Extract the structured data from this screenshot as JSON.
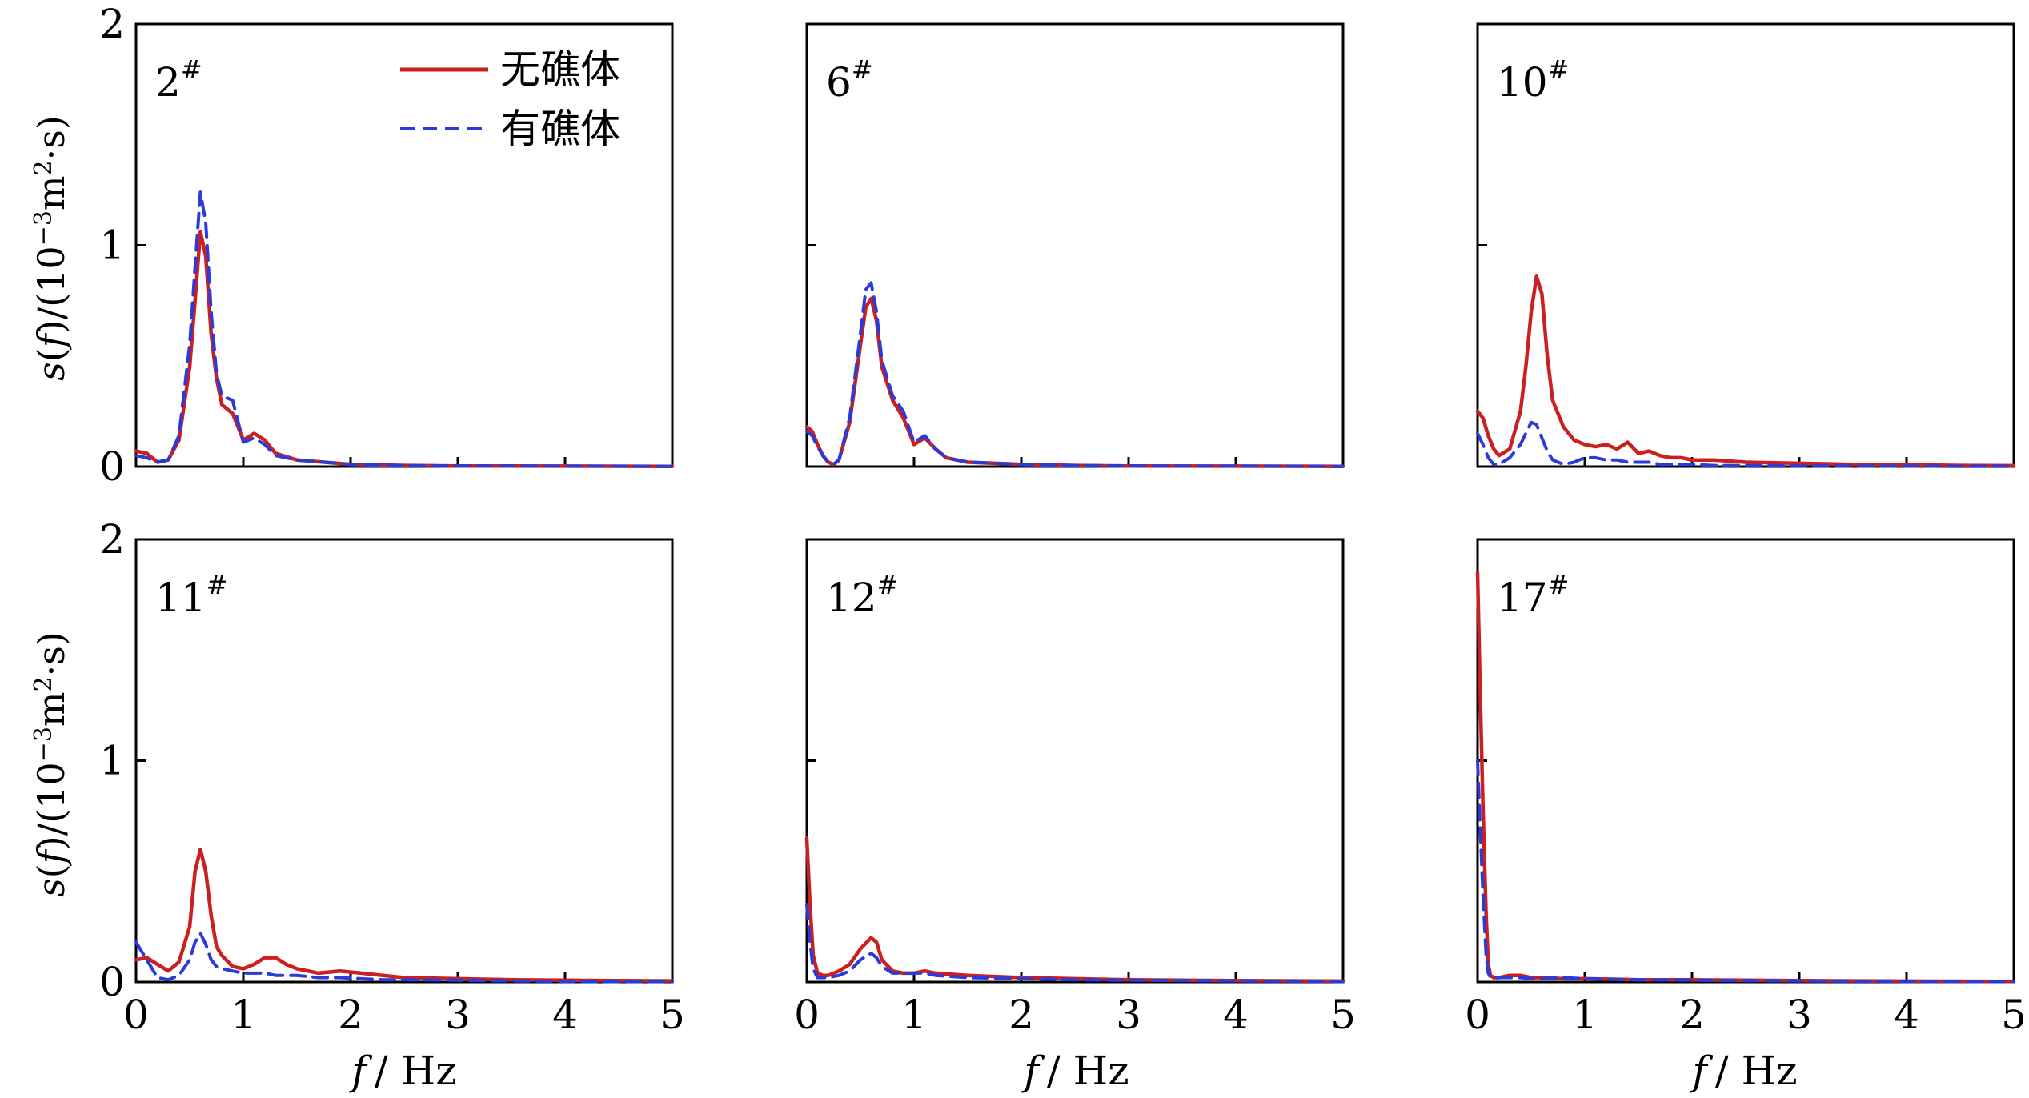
{
  "figure": {
    "y_label": "s(f)/(10⁻³m²·s)",
    "y_label_parts": {
      "italic_s": "s",
      "open": "(",
      "italic_f": "f",
      "close": ")/(10",
      "exp1": "−3",
      "unit": "m",
      "exp2": "2",
      "tail": "·s)"
    },
    "x_label": "f / Hz",
    "x_label_parts": {
      "italic_f": "f",
      "unit": "/ Hz"
    },
    "legend": [
      {
        "label": "无礁体",
        "color": "#cc1f1f",
        "dash": "solid"
      },
      {
        "label": "有礁体",
        "color": "#2a3bdc",
        "dash": "dashed"
      }
    ],
    "colors": {
      "no_reef": "#cc1f1f",
      "with_reef": "#2a3bdc"
    }
  },
  "chart_data": [
    {
      "type": "line",
      "title": "",
      "xlabel": "",
      "ylabel": "s(f)/(10⁻³m²·s)",
      "panel_label": "2",
      "panel_sup": "#",
      "xlim": [
        0,
        5
      ],
      "ylim": [
        0,
        2
      ],
      "x_ticks": [],
      "y_ticks": [
        0,
        1,
        2
      ],
      "show_legend": true,
      "x": [
        0,
        0.1,
        0.2,
        0.3,
        0.4,
        0.5,
        0.55,
        0.6,
        0.65,
        0.7,
        0.75,
        0.8,
        0.9,
        1.0,
        1.1,
        1.2,
        1.3,
        1.5,
        2.0,
        2.5,
        3.0,
        4.0,
        5.0
      ],
      "series": [
        {
          "name": "无礁体",
          "values": [
            0.07,
            0.06,
            0.02,
            0.03,
            0.12,
            0.45,
            0.75,
            1.06,
            0.95,
            0.6,
            0.4,
            0.28,
            0.24,
            0.12,
            0.15,
            0.12,
            0.06,
            0.03,
            0.01,
            0.005,
            0.003,
            0.002,
            0.001
          ]
        },
        {
          "name": "有礁体",
          "values": [
            0.05,
            0.04,
            0.02,
            0.03,
            0.14,
            0.55,
            0.9,
            1.24,
            1.1,
            0.7,
            0.42,
            0.32,
            0.3,
            0.11,
            0.13,
            0.1,
            0.05,
            0.03,
            0.01,
            0.005,
            0.003,
            0.002,
            0.001
          ]
        }
      ]
    },
    {
      "type": "line",
      "title": "",
      "xlabel": "",
      "ylabel": "",
      "panel_label": "6",
      "panel_sup": "#",
      "xlim": [
        0,
        5
      ],
      "ylim": [
        0,
        2
      ],
      "x_ticks": [],
      "y_ticks": [],
      "show_legend": false,
      "x": [
        0,
        0.05,
        0.1,
        0.15,
        0.2,
        0.25,
        0.3,
        0.4,
        0.5,
        0.55,
        0.6,
        0.65,
        0.7,
        0.8,
        0.9,
        1.0,
        1.1,
        1.2,
        1.3,
        1.5,
        2.0,
        2.5,
        3.0,
        4.0,
        5.0
      ],
      "series": [
        {
          "name": "无礁体",
          "values": [
            0.18,
            0.16,
            0.1,
            0.05,
            0.02,
            0.01,
            0.03,
            0.2,
            0.55,
            0.72,
            0.76,
            0.66,
            0.45,
            0.3,
            0.22,
            0.1,
            0.13,
            0.08,
            0.04,
            0.02,
            0.01,
            0.005,
            0.003,
            0.002,
            0.001
          ]
        },
        {
          "name": "有礁体",
          "values": [
            0.16,
            0.14,
            0.09,
            0.05,
            0.02,
            0.01,
            0.03,
            0.22,
            0.6,
            0.8,
            0.83,
            0.7,
            0.48,
            0.32,
            0.25,
            0.11,
            0.14,
            0.08,
            0.04,
            0.02,
            0.01,
            0.005,
            0.003,
            0.002,
            0.001
          ]
        }
      ]
    },
    {
      "type": "line",
      "title": "",
      "xlabel": "",
      "ylabel": "",
      "panel_label": "10",
      "panel_sup": "#",
      "xlim": [
        0,
        5
      ],
      "ylim": [
        0,
        2
      ],
      "x_ticks": [],
      "y_ticks": [],
      "show_legend": false,
      "x": [
        0,
        0.05,
        0.1,
        0.15,
        0.2,
        0.3,
        0.4,
        0.45,
        0.5,
        0.55,
        0.6,
        0.65,
        0.7,
        0.8,
        0.9,
        1.0,
        1.1,
        1.2,
        1.3,
        1.4,
        1.5,
        1.6,
        1.7,
        1.8,
        1.9,
        2.0,
        2.2,
        2.5,
        3.0,
        3.5,
        4.0,
        4.5,
        5.0
      ],
      "series": [
        {
          "name": "无礁体",
          "values": [
            0.25,
            0.22,
            0.14,
            0.08,
            0.05,
            0.08,
            0.25,
            0.45,
            0.7,
            0.86,
            0.78,
            0.5,
            0.3,
            0.18,
            0.12,
            0.1,
            0.09,
            0.1,
            0.08,
            0.11,
            0.06,
            0.07,
            0.05,
            0.04,
            0.04,
            0.03,
            0.03,
            0.02,
            0.015,
            0.01,
            0.008,
            0.005,
            0.004
          ]
        },
        {
          "name": "有礁体",
          "values": [
            0.15,
            0.1,
            0.04,
            0.01,
            0.01,
            0.04,
            0.1,
            0.15,
            0.2,
            0.19,
            0.13,
            0.07,
            0.03,
            0.01,
            0.02,
            0.04,
            0.04,
            0.03,
            0.03,
            0.02,
            0.02,
            0.02,
            0.01,
            0.01,
            0.01,
            0.01,
            0.005,
            0.005,
            0.003,
            0.002,
            0.002,
            0.001,
            0.001
          ]
        }
      ]
    },
    {
      "type": "line",
      "title": "",
      "xlabel": "f / Hz",
      "ylabel": "s(f)/(10⁻³m²·s)",
      "panel_label": "11",
      "panel_sup": "#",
      "xlim": [
        0,
        5
      ],
      "ylim": [
        0,
        2
      ],
      "x_ticks": [
        0,
        1,
        2,
        3,
        4,
        5
      ],
      "y_ticks": [
        0,
        1,
        2
      ],
      "show_legend": false,
      "x": [
        0,
        0.1,
        0.2,
        0.3,
        0.4,
        0.5,
        0.55,
        0.6,
        0.65,
        0.7,
        0.75,
        0.8,
        0.9,
        1.0,
        1.1,
        1.2,
        1.3,
        1.4,
        1.5,
        1.7,
        1.9,
        2.1,
        2.3,
        2.5,
        3.0,
        3.5,
        4.0,
        4.5,
        5.0
      ],
      "series": [
        {
          "name": "无礁体",
          "values": [
            0.1,
            0.11,
            0.08,
            0.05,
            0.09,
            0.25,
            0.5,
            0.6,
            0.5,
            0.3,
            0.16,
            0.12,
            0.07,
            0.06,
            0.08,
            0.11,
            0.11,
            0.08,
            0.06,
            0.04,
            0.05,
            0.04,
            0.03,
            0.02,
            0.015,
            0.01,
            0.008,
            0.006,
            0.005
          ]
        },
        {
          "name": "有礁体",
          "values": [
            0.18,
            0.1,
            0.02,
            0.01,
            0.03,
            0.1,
            0.18,
            0.22,
            0.17,
            0.1,
            0.07,
            0.06,
            0.05,
            0.04,
            0.04,
            0.04,
            0.03,
            0.03,
            0.03,
            0.02,
            0.02,
            0.015,
            0.01,
            0.01,
            0.008,
            0.005,
            0.003,
            0.002,
            0.002
          ]
        }
      ]
    },
    {
      "type": "line",
      "title": "",
      "xlabel": "f / Hz",
      "ylabel": "",
      "panel_label": "12",
      "panel_sup": "#",
      "xlim": [
        0,
        5
      ],
      "ylim": [
        0,
        2
      ],
      "x_ticks": [
        0,
        1,
        2,
        3,
        4,
        5
      ],
      "y_ticks": [],
      "show_legend": false,
      "x": [
        0,
        0.03,
        0.06,
        0.1,
        0.15,
        0.2,
        0.3,
        0.4,
        0.5,
        0.6,
        0.65,
        0.7,
        0.8,
        0.9,
        1.0,
        1.1,
        1.2,
        1.5,
        2.0,
        2.5,
        3.0,
        4.0,
        5.0
      ],
      "series": [
        {
          "name": "无礁体",
          "values": [
            0.65,
            0.35,
            0.12,
            0.04,
            0.03,
            0.03,
            0.05,
            0.08,
            0.15,
            0.2,
            0.18,
            0.1,
            0.05,
            0.04,
            0.04,
            0.05,
            0.04,
            0.03,
            0.02,
            0.015,
            0.01,
            0.006,
            0.004
          ]
        },
        {
          "name": "有礁体",
          "values": [
            0.35,
            0.18,
            0.06,
            0.02,
            0.02,
            0.02,
            0.03,
            0.05,
            0.1,
            0.13,
            0.11,
            0.07,
            0.04,
            0.04,
            0.04,
            0.04,
            0.03,
            0.02,
            0.015,
            0.01,
            0.008,
            0.005,
            0.003
          ]
        }
      ]
    },
    {
      "type": "line",
      "title": "",
      "xlabel": "f / Hz",
      "ylabel": "",
      "panel_label": "17",
      "panel_sup": "#",
      "xlim": [
        0,
        5
      ],
      "ylim": [
        0,
        2
      ],
      "x_ticks": [
        0,
        1,
        2,
        3,
        4,
        5
      ],
      "y_ticks": [],
      "show_legend": false,
      "x": [
        0,
        0.02,
        0.05,
        0.08,
        0.1,
        0.12,
        0.15,
        0.2,
        0.3,
        0.4,
        0.5,
        0.6,
        0.8,
        1.0,
        1.5,
        2.0,
        2.5,
        3.0,
        4.0,
        5.0
      ],
      "series": [
        {
          "name": "无礁体",
          "values": [
            1.85,
            1.4,
            0.8,
            0.3,
            0.08,
            0.03,
            0.02,
            0.02,
            0.03,
            0.03,
            0.02,
            0.02,
            0.015,
            0.015,
            0.01,
            0.01,
            0.008,
            0.006,
            0.004,
            0.003
          ]
        },
        {
          "name": "有礁体",
          "values": [
            1.0,
            0.75,
            0.4,
            0.12,
            0.04,
            0.02,
            0.02,
            0.02,
            0.02,
            0.02,
            0.015,
            0.015,
            0.02,
            0.015,
            0.01,
            0.008,
            0.006,
            0.005,
            0.003,
            0.002
          ]
        }
      ]
    }
  ]
}
